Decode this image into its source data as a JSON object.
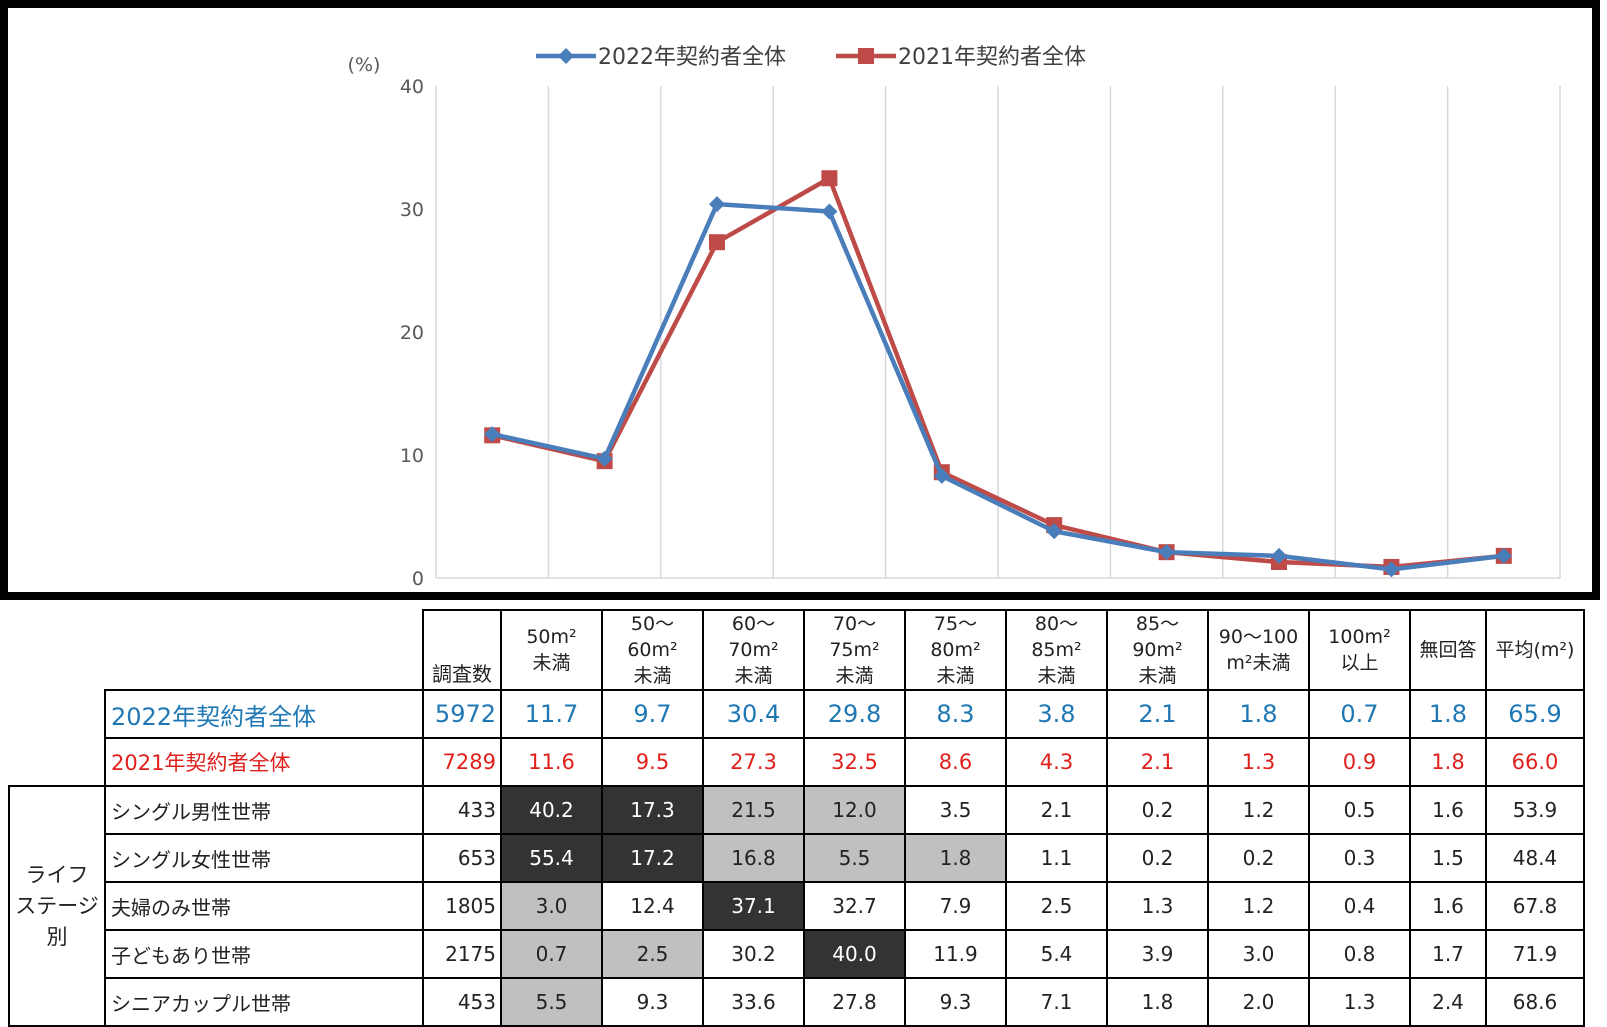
{
  "chart_data": {
    "type": "line",
    "y_unit_label": "(%)",
    "ylim": [
      0,
      40
    ],
    "yticks": [
      "0",
      "10",
      "20",
      "30",
      "40"
    ],
    "categories": [
      "50m²未満",
      "50〜60m²未満",
      "60〜70m²未満",
      "70〜75m²未満",
      "75〜80m²未満",
      "80〜85m²未満",
      "85〜90m²未満",
      "90〜100m²未満",
      "100m²以上",
      "無回答"
    ],
    "legend_position": "top",
    "grid": "vertical",
    "series": [
      {
        "name": "2022年契約者全体",
        "color": "#4a7ebb",
        "marker": "diamond",
        "values": [
          11.7,
          9.7,
          30.4,
          29.8,
          8.3,
          3.8,
          2.1,
          1.8,
          0.7,
          1.8
        ]
      },
      {
        "name": "2021年契約者全体",
        "color": "#be4b48",
        "marker": "square",
        "values": [
          11.6,
          9.5,
          27.3,
          32.5,
          8.6,
          4.3,
          2.1,
          1.3,
          0.9,
          1.8
        ]
      }
    ]
  },
  "table": {
    "header": {
      "count": "調査数",
      "cols": [
        [
          "50m²",
          "未満"
        ],
        [
          "50〜60m²",
          "未満"
        ],
        [
          "60〜70m²",
          "未満"
        ],
        [
          "70〜75m²",
          "未満"
        ],
        [
          "75〜80m²",
          "未満"
        ],
        [
          "80〜85m²",
          "未満"
        ],
        [
          "85〜90m²",
          "未満"
        ],
        [
          "90〜100",
          "m²未満"
        ],
        [
          "100m²",
          "以上"
        ],
        [
          "無回答",
          ""
        ],
        [
          "平均(m²)",
          ""
        ]
      ]
    },
    "group_label": [
      "ライフ",
      "ステージ",
      "別"
    ],
    "rows": [
      {
        "label": "2022年契約者全体",
        "count": "5972",
        "values": [
          "11.7",
          "9.7",
          "30.4",
          "29.8",
          "8.3",
          "3.8",
          "2.1",
          "1.8",
          "0.7",
          "1.8",
          "65.9"
        ]
      },
      {
        "label": "2021年契約者全体",
        "count": "7289",
        "values": [
          "11.6",
          "9.5",
          "27.3",
          "32.5",
          "8.6",
          "4.3",
          "2.1",
          "1.3",
          "0.9",
          "1.8",
          "66.0"
        ]
      },
      {
        "label": "シングル男性世帯",
        "count": "433",
        "values": [
          "40.2",
          "17.3",
          "21.5",
          "12.0",
          "3.5",
          "2.1",
          "0.2",
          "1.2",
          "0.5",
          "1.6",
          "53.9"
        ]
      },
      {
        "label": "シングル女性世帯",
        "count": "653",
        "values": [
          "55.4",
          "17.2",
          "16.8",
          "5.5",
          "1.8",
          "1.1",
          "0.2",
          "0.2",
          "0.3",
          "1.5",
          "48.4"
        ]
      },
      {
        "label": "夫婦のみ世帯",
        "count": "1805",
        "values": [
          "3.0",
          "12.4",
          "37.1",
          "32.7",
          "7.9",
          "2.5",
          "1.3",
          "1.2",
          "0.4",
          "1.6",
          "67.8"
        ]
      },
      {
        "label": "子どもあり世帯",
        "count": "2175",
        "values": [
          "0.7",
          "2.5",
          "30.2",
          "40.0",
          "11.9",
          "5.4",
          "3.9",
          "3.0",
          "0.8",
          "1.7",
          "71.9"
        ]
      },
      {
        "label": "シニアカップル世帯",
        "count": "453",
        "values": [
          "5.5",
          "9.3",
          "33.6",
          "27.8",
          "9.3",
          "7.1",
          "1.8",
          "2.0",
          "1.3",
          "2.4",
          "68.6"
        ]
      }
    ],
    "shading": {
      "dark": [
        [
          2,
          0
        ],
        [
          2,
          1
        ],
        [
          3,
          0
        ],
        [
          3,
          1
        ],
        [
          4,
          2
        ],
        [
          5,
          3
        ]
      ],
      "gray": [
        [
          2,
          2
        ],
        [
          2,
          3
        ],
        [
          3,
          2
        ],
        [
          3,
          3
        ],
        [
          3,
          4
        ],
        [
          4,
          0
        ],
        [
          5,
          0
        ],
        [
          5,
          1
        ],
        [
          6,
          0
        ]
      ]
    }
  }
}
